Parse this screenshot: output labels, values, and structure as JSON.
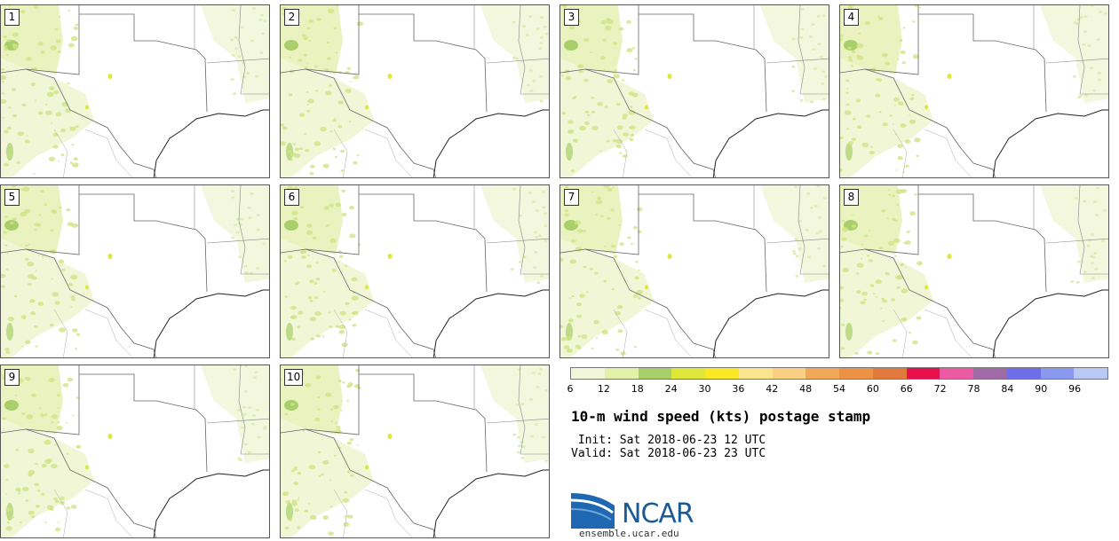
{
  "panels": [
    {
      "label": "1"
    },
    {
      "label": "2"
    },
    {
      "label": "3"
    },
    {
      "label": "4"
    },
    {
      "label": "5"
    },
    {
      "label": "6"
    },
    {
      "label": "7"
    },
    {
      "label": "8"
    },
    {
      "label": "9"
    },
    {
      "label": "10"
    }
  ],
  "colorbar": {
    "ticks": [
      "6",
      "12",
      "18",
      "24",
      "30",
      "36",
      "42",
      "48",
      "54",
      "60",
      "66",
      "72",
      "78",
      "84",
      "90",
      "96"
    ],
    "colors": [
      "#f2f7d9",
      "#e3f0a8",
      "#a8cf6a",
      "#dde83a",
      "#fbe825",
      "#fae58c",
      "#f9cf83",
      "#f0a758",
      "#ec9245",
      "#e27a3e",
      "#e8104a",
      "#ec5aa3",
      "#a06aa6",
      "#6e6ee8",
      "#8a99f0",
      "#b9c8f5"
    ]
  },
  "info": {
    "title": "10-m wind speed (kts) postage stamp",
    "init": " Init: Sat 2018-06-23 12 UTC",
    "valid": "Valid: Sat 2018-06-23 23 UTC"
  },
  "logo": {
    "name": "NCAR",
    "site": "ensemble.ucar.edu"
  }
}
